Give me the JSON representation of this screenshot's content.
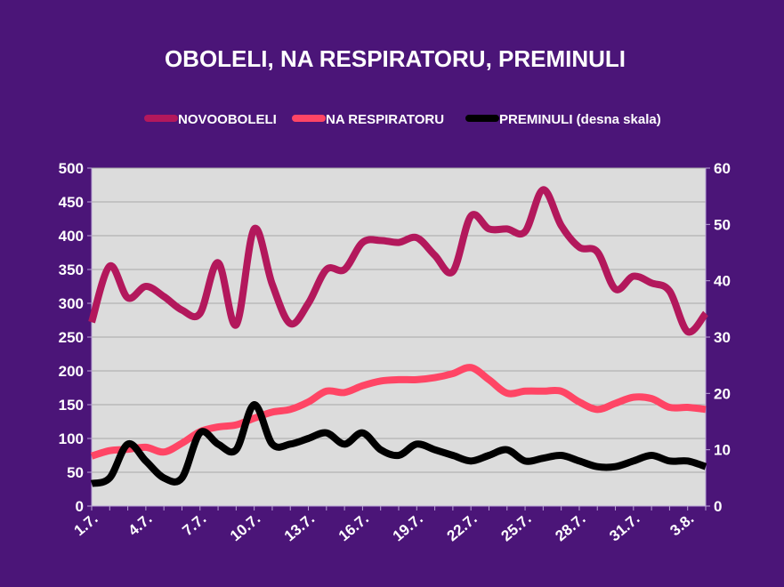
{
  "chart_data": {
    "type": "line",
    "title": "OBOLELI, NA RESPIRATORU, PREMINULI",
    "legend_position": "top",
    "grid": true,
    "categories": [
      "1.7.",
      "2.7.",
      "3.7.",
      "4.7.",
      "5.7.",
      "6.7.",
      "7.7.",
      "8.7.",
      "9.7.",
      "10.7.",
      "11.7.",
      "12.7.",
      "13.7.",
      "14.7.",
      "15.7.",
      "16.7.",
      "17.7.",
      "18.7.",
      "19.7.",
      "20.7.",
      "21.7.",
      "22.7.",
      "23.7.",
      "24.7.",
      "25.7.",
      "26.7.",
      "27.7.",
      "28.7.",
      "29.7.",
      "30.7.",
      "31.7.",
      "1.8.",
      "2.8.",
      "3.8.",
      "4.8."
    ],
    "x_tick_labels": [
      "1.7.",
      "4.7.",
      "7.7.",
      "10.7.",
      "13.7.",
      "16.7.",
      "19.7.",
      "22.7.",
      "25.7.",
      "28.7.",
      "31.7.",
      "3.8."
    ],
    "y_left": {
      "range": [
        0,
        500
      ],
      "ticks": [
        "0",
        "50",
        "100",
        "150",
        "200",
        "250",
        "300",
        "350",
        "400",
        "450",
        "500"
      ]
    },
    "y_right": {
      "range": [
        0,
        60
      ],
      "ticks": [
        "0",
        "10",
        "20",
        "30",
        "40",
        "50",
        "60"
      ]
    },
    "series": [
      {
        "name": "NOVOOBOLELI",
        "axis": "left",
        "color": "#b3185c",
        "values": [
          272,
          355,
          308,
          325,
          310,
          290,
          285,
          360,
          268,
          410,
          328,
          270,
          300,
          350,
          350,
          390,
          393,
          390,
          397,
          371,
          347,
          429,
          410,
          410,
          406,
          468,
          415,
          383,
          376,
          321,
          340,
          330,
          318,
          258,
          285
        ]
      },
      {
        "name": "NA RESPIRATORU",
        "axis": "left",
        "color": "#ff4565",
        "values": [
          74,
          82,
          84,
          87,
          80,
          93,
          110,
          117,
          120,
          130,
          139,
          143,
          154,
          170,
          168,
          178,
          185,
          187,
          187,
          190,
          196,
          205,
          187,
          167,
          170,
          170,
          170,
          154,
          143,
          152,
          161,
          159,
          146,
          146,
          143
        ]
      },
      {
        "name": "PREMINULI (desna skala)",
        "axis": "right",
        "color": "#000000",
        "values": [
          4,
          5,
          11,
          8,
          5,
          5,
          13,
          11,
          10,
          18,
          11,
          11,
          12,
          13,
          11,
          13,
          10,
          9,
          11,
          10,
          9,
          8,
          9,
          10,
          8,
          8.5,
          9,
          8,
          7,
          7,
          8,
          9,
          8,
          8,
          7
        ]
      }
    ]
  }
}
